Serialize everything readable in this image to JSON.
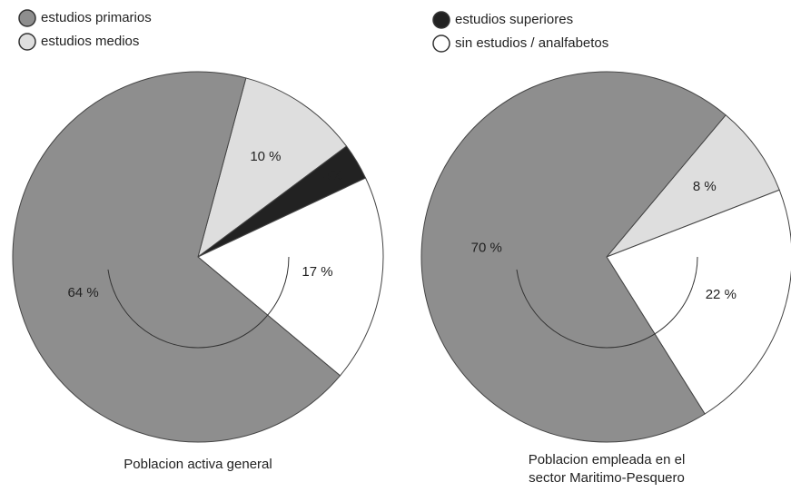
{
  "legend": [
    {
      "name": "estudios primarios",
      "color": "#8e8e8e"
    },
    {
      "name": "estudios medios",
      "color": "#dedede"
    },
    {
      "name": "estudios superiores",
      "color": "#222222"
    },
    {
      "name": "sin estudios / analfabetos",
      "color": "#ffffff"
    }
  ],
  "chart_data": [
    {
      "type": "pie",
      "title": [
        "Poblacion activa general"
      ],
      "values": [
        10,
        3,
        17,
        64
      ],
      "value_labels": [
        "10 %",
        "3%",
        "17 %",
        "64 %"
      ],
      "colors": [
        "#dedede",
        "#222222",
        "#ffffff",
        "#8e8e8e"
      ]
    },
    {
      "type": "pie",
      "title": [
        "Poblacion empleada en el",
        "sector Maritimo-Pesquero"
      ],
      "values": [
        8,
        22,
        70
      ],
      "value_labels": [
        "8 %",
        "22 %",
        "70 %"
      ],
      "colors": [
        "#dedede",
        "#ffffff",
        "#8e8e8e"
      ]
    }
  ]
}
